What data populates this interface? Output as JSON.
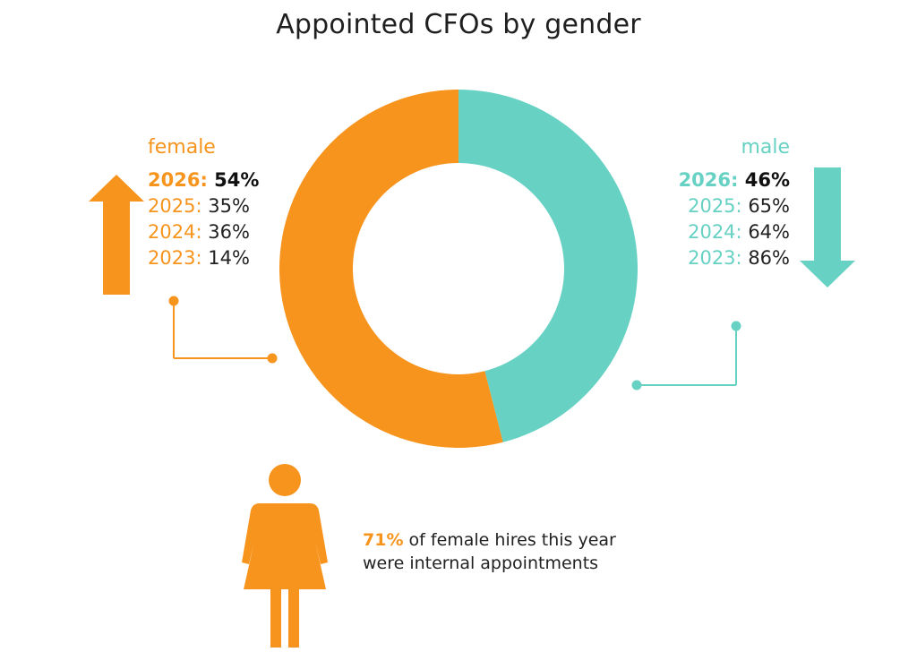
{
  "chart_data": {
    "type": "pie",
    "title": "Appointed CFOs by gender",
    "donut": true,
    "series": [
      {
        "name": "female",
        "color": "#f7941d",
        "value": 54
      },
      {
        "name": "male",
        "color": "#67d1c3",
        "value": 46
      }
    ],
    "history": {
      "female": [
        {
          "year": "2026:",
          "value": "54%",
          "highlight": true
        },
        {
          "year": "2025:",
          "value": "35%"
        },
        {
          "year": "2024:",
          "value": "36%"
        },
        {
          "year": "2023:",
          "value": "14%"
        }
      ],
      "male": [
        {
          "year": "2026:",
          "value": "46%",
          "highlight": true
        },
        {
          "year": "2025:",
          "value": "65%"
        },
        {
          "year": "2024:",
          "value": "64%"
        },
        {
          "year": "2023:",
          "value": "86%"
        }
      ]
    },
    "trend": {
      "female": "up",
      "male": "down"
    }
  },
  "note": {
    "highlight": "71%",
    "text": " of female hires this year",
    "text2": "were internal appointments"
  },
  "colors": {
    "female": "#f7941d",
    "male": "#67d1c3"
  },
  "icons": {
    "female_trend": "up-arrow-icon",
    "male_trend": "down-arrow-icon",
    "person": "female-person-icon"
  }
}
